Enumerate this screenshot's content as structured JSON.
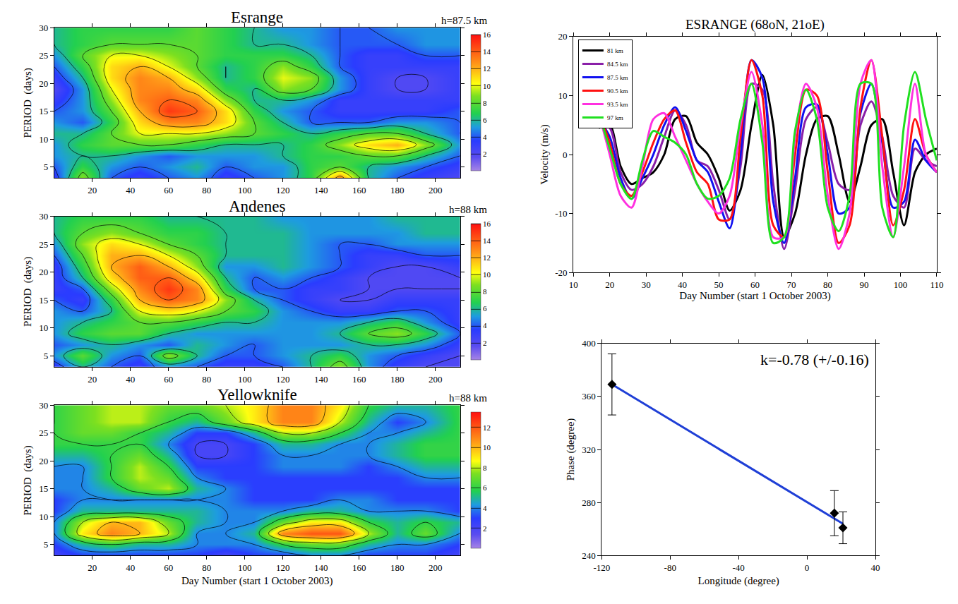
{
  "chart_data": [
    {
      "type": "heatmap",
      "title": "Esrange",
      "subtitle": "h=87.5 km",
      "ylabel": "PERIOD  (days)",
      "x": [
        0,
        15,
        30,
        45,
        60,
        75,
        90,
        105,
        120,
        135,
        150,
        165,
        180,
        195,
        213
      ],
      "y": [
        3,
        5,
        7,
        9,
        11,
        13,
        15,
        17,
        19,
        21,
        23,
        25,
        27,
        30
      ],
      "z": [
        [
          3,
          9,
          4,
          3,
          4,
          5,
          3,
          4,
          5,
          7,
          13,
          6,
          4,
          3,
          2
        ],
        [
          4,
          7,
          5,
          4,
          5,
          6,
          4,
          5,
          5,
          7,
          8,
          6,
          5,
          4,
          3
        ],
        [
          5,
          6,
          6,
          5,
          4,
          5,
          5,
          5,
          6,
          7,
          7,
          8,
          8,
          6,
          4
        ],
        [
          5,
          7,
          8,
          8,
          8,
          7,
          6,
          6,
          6,
          7,
          9,
          11,
          12,
          9,
          5
        ],
        [
          6,
          6,
          8,
          10,
          10,
          10,
          9,
          8,
          7,
          6,
          7,
          8,
          8,
          6,
          4
        ],
        [
          5,
          4,
          7,
          11,
          13,
          13,
          11,
          8,
          6,
          4,
          4,
          4,
          5,
          5,
          4
        ],
        [
          4,
          5,
          8,
          12,
          15,
          14,
          11,
          7,
          5,
          4,
          3,
          3,
          3,
          3,
          4
        ],
        [
          3,
          5,
          9,
          13,
          14,
          13,
          9,
          6,
          6,
          5,
          3,
          3,
          3,
          3,
          3
        ],
        [
          2,
          5,
          10,
          13,
          13,
          11,
          7,
          6,
          9,
          8,
          5,
          3,
          2,
          2,
          3
        ],
        [
          3,
          6,
          11,
          13,
          12,
          9,
          6,
          7,
          10,
          9,
          5,
          3,
          2,
          2,
          3
        ],
        [
          4,
          7,
          11,
          12,
          10,
          8,
          6,
          7,
          9,
          7,
          4,
          3,
          3,
          3,
          3
        ],
        [
          5,
          8,
          10,
          10,
          9,
          8,
          7,
          7,
          7,
          6,
          4,
          3,
          3,
          4,
          4
        ],
        [
          6,
          7,
          8,
          8,
          8,
          8,
          7,
          6,
          6,
          5,
          4,
          4,
          4,
          5,
          5
        ],
        [
          6,
          7,
          7,
          7,
          7,
          8,
          7,
          6,
          5,
          5,
          4,
          4,
          5,
          5,
          5
        ]
      ],
      "zlim": [
        0,
        16
      ],
      "zticks": [
        2,
        4,
        6,
        8,
        10,
        12,
        14,
        16
      ],
      "xlim": [
        0,
        213
      ],
      "xticks": [
        20,
        40,
        60,
        80,
        100,
        120,
        140,
        160,
        180,
        200
      ],
      "ylim": [
        3,
        30
      ],
      "yticks": [
        5,
        10,
        15,
        20,
        25,
        30
      ],
      "grid": false
    },
    {
      "type": "heatmap",
      "title": "Andenes",
      "subtitle": "h=88 km",
      "ylabel": "PERIOD  (days)",
      "x": [
        0,
        15,
        30,
        45,
        60,
        75,
        90,
        105,
        120,
        135,
        150,
        165,
        180,
        195,
        213
      ],
      "y": [
        3,
        5,
        7,
        9,
        11,
        13,
        15,
        17,
        19,
        21,
        23,
        25,
        27,
        30
      ],
      "z": [
        [
          3,
          6,
          4,
          3,
          5,
          4,
          3,
          3,
          4,
          6,
          9,
          5,
          3,
          2,
          2
        ],
        [
          5,
          8,
          5,
          4,
          9,
          6,
          4,
          4,
          5,
          6,
          7,
          5,
          4,
          3,
          2
        ],
        [
          4,
          5,
          6,
          5,
          4,
          6,
          5,
          4,
          5,
          5,
          5,
          6,
          6,
          5,
          3
        ],
        [
          5,
          7,
          8,
          8,
          6,
          5,
          5,
          5,
          5,
          5,
          6,
          8,
          9,
          7,
          4
        ],
        [
          5,
          6,
          7,
          8,
          8,
          7,
          6,
          6,
          5,
          5,
          5,
          6,
          7,
          5,
          3
        ],
        [
          5,
          4,
          6,
          10,
          11,
          10,
          8,
          7,
          5,
          4,
          3,
          3,
          4,
          4,
          3
        ],
        [
          4,
          3,
          7,
          12,
          14,
          13,
          9,
          6,
          4,
          3,
          2,
          2,
          3,
          3,
          3
        ],
        [
          3,
          4,
          9,
          13,
          15,
          13,
          7,
          4,
          4,
          3,
          3,
          2,
          2,
          2,
          2
        ],
        [
          3,
          6,
          11,
          14,
          14,
          11,
          6,
          4,
          5,
          4,
          3,
          2,
          2,
          2,
          2
        ],
        [
          3,
          7,
          12,
          14,
          12,
          9,
          5,
          5,
          6,
          5,
          4,
          3,
          2,
          2,
          3
        ],
        [
          4,
          8,
          12,
          12,
          10,
          8,
          6,
          6,
          6,
          5,
          4,
          3,
          3,
          4,
          4
        ],
        [
          5,
          9,
          11,
          10,
          8,
          7,
          6,
          6,
          6,
          5,
          4,
          4,
          5,
          5,
          5
        ],
        [
          6,
          8,
          9,
          8,
          7,
          7,
          6,
          6,
          6,
          5,
          5,
          5,
          5,
          6,
          6
        ],
        [
          6,
          7,
          7,
          7,
          6,
          6,
          6,
          6,
          5,
          5,
          5,
          5,
          6,
          6,
          6
        ]
      ],
      "zlim": [
        0,
        16
      ],
      "zticks": [
        2,
        4,
        6,
        8,
        10,
        12,
        14,
        16
      ],
      "xlim": [
        0,
        213
      ],
      "xticks": [
        20,
        40,
        60,
        80,
        100,
        120,
        140,
        160,
        180,
        200
      ],
      "ylim": [
        3,
        30
      ],
      "yticks": [
        5,
        10,
        15,
        20,
        25,
        30
      ],
      "grid": false
    },
    {
      "type": "heatmap",
      "title": "Yellowknife",
      "subtitle": "h=88 km",
      "ylabel": "PERIOD  (days)",
      "xlabel": "Day Number (start 1 October 2003)",
      "x": [
        0,
        15,
        30,
        45,
        60,
        75,
        90,
        105,
        120,
        135,
        150,
        165,
        180,
        195,
        213
      ],
      "y": [
        3,
        5,
        7,
        9,
        11,
        13,
        15,
        17,
        19,
        21,
        23,
        25,
        27,
        30
      ],
      "z": [
        [
          2,
          3,
          3,
          3,
          3,
          3,
          2,
          3,
          3,
          4,
          4,
          3,
          3,
          3,
          2
        ],
        [
          3,
          5,
          6,
          5,
          5,
          4,
          4,
          4,
          6,
          7,
          7,
          5,
          4,
          4,
          3
        ],
        [
          4,
          9,
          11,
          10,
          8,
          4,
          4,
          5,
          11,
          12,
          12,
          8,
          5,
          7,
          4
        ],
        [
          4,
          8,
          10,
          10,
          7,
          5,
          4,
          4,
          7,
          9,
          9,
          6,
          5,
          6,
          5
        ],
        [
          3,
          5,
          5,
          5,
          5,
          5,
          4,
          4,
          4,
          5,
          5,
          4,
          4,
          4,
          3
        ],
        [
          3,
          4,
          4,
          4,
          4,
          4,
          4,
          3,
          3,
          3,
          4,
          4,
          3,
          3,
          3
        ],
        [
          4,
          4,
          5,
          7,
          8,
          5,
          4,
          3,
          3,
          3,
          3,
          3,
          3,
          3,
          3
        ],
        [
          4,
          4,
          6,
          8,
          7,
          4,
          3,
          3,
          3,
          3,
          3,
          3,
          3,
          4,
          4
        ],
        [
          4,
          4,
          6,
          8,
          6,
          3,
          3,
          3,
          4,
          4,
          4,
          3,
          4,
          5,
          5
        ],
        [
          5,
          5,
          6,
          7,
          5,
          2,
          2,
          3,
          4,
          4,
          4,
          4,
          5,
          6,
          6
        ],
        [
          6,
          6,
          6,
          6,
          4,
          2,
          2,
          3,
          5,
          5,
          4,
          4,
          5,
          6,
          6
        ],
        [
          6,
          7,
          7,
          6,
          5,
          3,
          3,
          5,
          8,
          8,
          6,
          4,
          4,
          5,
          6
        ],
        [
          6,
          7,
          8,
          8,
          6,
          5,
          7,
          9,
          11,
          11,
          8,
          5,
          3,
          4,
          6
        ],
        [
          6,
          7,
          8,
          8,
          7,
          7,
          8,
          9,
          11,
          11,
          9,
          6,
          5,
          5,
          6
        ]
      ],
      "zlim": [
        0,
        13.5
      ],
      "zticks": [
        2,
        4,
        6,
        8,
        10,
        12
      ],
      "xlim": [
        0,
        213
      ],
      "xticks": [
        20,
        40,
        60,
        80,
        100,
        120,
        140,
        160,
        180,
        200
      ],
      "ylim": [
        3,
        30
      ],
      "yticks": [
        5,
        10,
        15,
        20,
        25,
        30
      ],
      "grid": false
    },
    {
      "type": "line",
      "title": "ESRANGE (68oN, 21oE)",
      "xlabel": "Day Number (start 1 October 2003)",
      "ylabel": "Velocity (m/s)",
      "x": [
        17,
        20,
        23,
        26,
        29,
        32,
        35,
        38,
        41,
        44,
        47,
        50,
        53,
        56,
        59,
        62,
        65,
        68,
        71,
        74,
        77,
        80,
        83,
        86,
        89,
        92,
        95,
        98,
        101,
        104,
        107,
        110
      ],
      "series": [
        {
          "name": "81 km",
          "color": "#000000",
          "values": [
            4.5,
            5,
            -2,
            -5,
            -4,
            -3,
            0,
            6,
            6.5,
            2,
            0,
            -4,
            -9.5,
            -6,
            5,
            13.5,
            5,
            -14,
            -10,
            0,
            6,
            6.5,
            0,
            -8,
            -2,
            5,
            6,
            -3,
            -12,
            -3,
            0,
            1
          ]
        },
        {
          "name": "84.5 km",
          "color": "#8a1fa8",
          "values": [
            5,
            4.5,
            -3,
            -6,
            -5,
            -2,
            3,
            7.5,
            5,
            -1,
            -2,
            -6,
            -11,
            -2,
            12,
            11,
            -5,
            -16,
            -6,
            6,
            8,
            2,
            -5,
            -6,
            5,
            9,
            3,
            -7,
            -9,
            1,
            -1,
            -2
          ]
        },
        {
          "name": "87.5 km",
          "color": "#1010f0",
          "values": [
            6,
            3,
            -4,
            -7.5,
            -4,
            0,
            5,
            8,
            4,
            -1,
            -3,
            -8,
            -12.5,
            0,
            16,
            13,
            -8,
            -15,
            -4,
            8,
            8.5,
            0,
            -10,
            -9,
            7,
            12,
            2,
            -9,
            -8,
            2.5,
            -1,
            -3
          ]
        },
        {
          "name": "90.5 km",
          "color": "#ff1010",
          "values": [
            7,
            2,
            -5,
            -7,
            -3,
            2,
            6,
            7.5,
            2,
            -3,
            -5,
            -11,
            -11,
            3,
            16,
            10,
            -12,
            -14,
            0,
            11,
            10,
            -3,
            -15,
            -12,
            8,
            16,
            3,
            -12,
            -6,
            6,
            0,
            -3
          ]
        },
        {
          "name": "93.5 km",
          "color": "#ff30e0",
          "values": [
            7,
            0,
            -7,
            -9,
            -2,
            6,
            7,
            3,
            -1,
            -5,
            -8,
            -10,
            -7,
            5,
            14,
            5,
            -14,
            -14,
            3,
            12,
            8,
            -7,
            -16,
            -10,
            12,
            16,
            -2,
            -14,
            -2,
            12,
            0,
            -3
          ]
        },
        {
          "name": "97 km",
          "color": "#20e020",
          "values": [
            7,
            1,
            -5,
            -7.5,
            -1,
            4,
            3,
            2,
            0,
            -5,
            -7.5,
            -7,
            -4,
            6,
            12,
            2,
            -15,
            -14,
            4,
            11,
            6,
            -9,
            -13,
            -7,
            12,
            12,
            -9,
            -14,
            5,
            14,
            6,
            -1
          ]
        }
      ],
      "xlim": [
        10,
        110
      ],
      "xticks": [
        10,
        20,
        30,
        40,
        50,
        60,
        70,
        80,
        90,
        100,
        110
      ],
      "ylim": [
        -20,
        20
      ],
      "yticks": [
        -20,
        -10,
        0,
        10,
        20
      ],
      "legend": "upper left",
      "grid": false
    },
    {
      "type": "scatter",
      "xlabel": "Longitude (degree)",
      "ylabel": "Phase (degree)",
      "x": [
        -114,
        16,
        21
      ],
      "values": [
        369,
        272,
        261
      ],
      "errors": [
        23,
        17,
        12
      ],
      "marker": "diamond",
      "color": "#000000",
      "fit": {
        "x": [
          -114,
          21
        ],
        "values": [
          369,
          264
        ],
        "color": "#1f3fd6"
      },
      "annotations": [
        "k=-0.78 (+/-0.16)"
      ],
      "xlim": [
        -120,
        40
      ],
      "xticks": [
        -120,
        -80,
        -40,
        0,
        40
      ],
      "ylim": [
        240,
        400
      ],
      "yticks": [
        240,
        280,
        320,
        360,
        400
      ],
      "grid": false
    }
  ]
}
